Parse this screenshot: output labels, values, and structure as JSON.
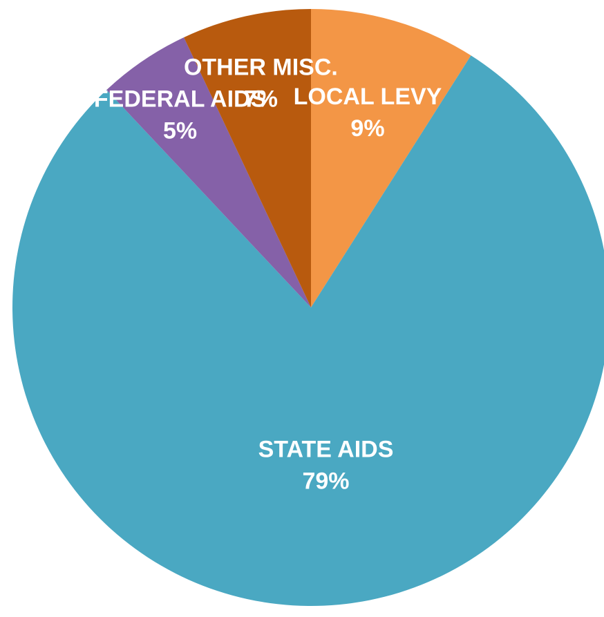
{
  "chart_data": {
    "type": "pie",
    "title": "",
    "start_angle_deg": 0,
    "direction": "clockwise",
    "slices": [
      {
        "label": "LOCAL LEVY",
        "value": 9,
        "display": "9%",
        "color": "#F39646"
      },
      {
        "label": "STATE AIDS",
        "value": 79,
        "display": "79%",
        "color": "#4AA8C2"
      },
      {
        "label": "FEDERAL AIDS",
        "value": 5,
        "display": "5%",
        "color": "#8561A8"
      },
      {
        "label": "OTHER MISC.",
        "value": 7,
        "display": "7%",
        "color": "#B85A0E"
      }
    ]
  }
}
